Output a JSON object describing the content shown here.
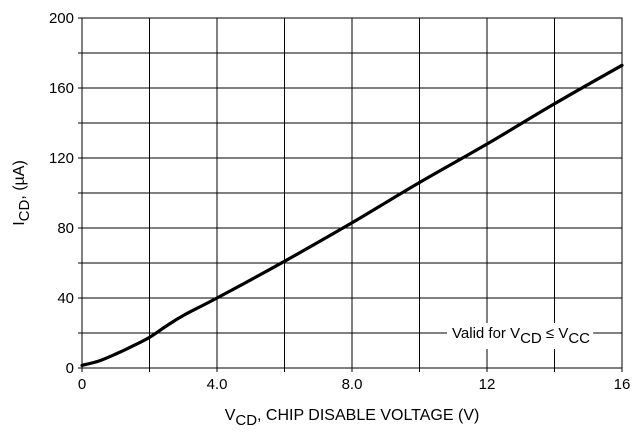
{
  "chart_data": {
    "type": "line",
    "xlabel": {
      "main": "V",
      "sub": "CD",
      "rest": ", CHIP DISABLE VOLTAGE (V)"
    },
    "ylabel": {
      "main": "I",
      "sub": "CD",
      "rest": ", (µA)"
    },
    "xlim": [
      0,
      16
    ],
    "ylim": [
      0,
      200
    ],
    "x_ticks": [
      0,
      2,
      4,
      6,
      8,
      10,
      12,
      14,
      16
    ],
    "y_ticks": [
      0,
      20,
      40,
      60,
      80,
      100,
      120,
      140,
      160,
      180,
      200
    ],
    "x_tick_labels": [
      {
        "value": 0,
        "label": "0"
      },
      {
        "value": 4,
        "label": "4.0"
      },
      {
        "value": 8,
        "label": "8.0"
      },
      {
        "value": 12,
        "label": "12"
      },
      {
        "value": 16,
        "label": "16"
      }
    ],
    "y_tick_labels": [
      {
        "value": 0,
        "label": "0"
      },
      {
        "value": 40,
        "label": "40"
      },
      {
        "value": 80,
        "label": "80"
      },
      {
        "value": 120,
        "label": "120"
      },
      {
        "value": 160,
        "label": "160"
      },
      {
        "value": 200,
        "label": "200"
      }
    ],
    "grid": true,
    "annotation": {
      "t1": "Valid for V",
      "s1": "CD",
      "t2": " ≤ V",
      "s2": "CC"
    },
    "series": [
      {
        "color": "#000000",
        "x": [
          0,
          0.5,
          1.0,
          1.5,
          2.0,
          2.5,
          3.0,
          4.0,
          6.0,
          8.0,
          10.0,
          12.0,
          14.0,
          16.0
        ],
        "y": [
          1.5,
          4,
          8,
          12.5,
          17.5,
          24,
          30,
          40,
          61,
          83,
          106,
          128,
          151,
          173
        ]
      }
    ]
  }
}
